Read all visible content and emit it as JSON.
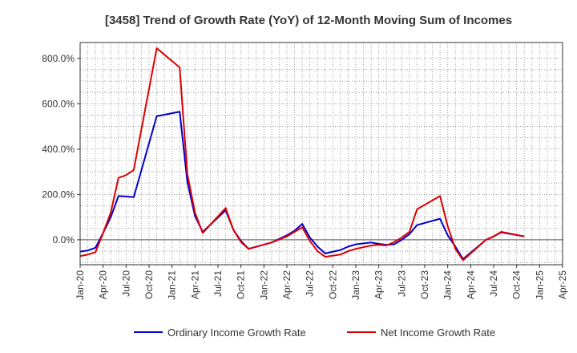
{
  "chart_data": {
    "type": "line",
    "title": "[3458]  Trend of Growth Rate (YoY) of 12-Month Moving Sum of Incomes",
    "xlabel": "",
    "ylabel": "",
    "x_tick_labels": [
      "Jan-20",
      "Apr-20",
      "Jul-20",
      "Oct-20",
      "Jan-21",
      "Apr-21",
      "Jul-21",
      "Oct-21",
      "Jan-22",
      "Apr-22",
      "Jul-22",
      "Oct-22",
      "Jan-23",
      "Apr-23",
      "Jul-23",
      "Oct-23",
      "Jan-24",
      "Apr-24",
      "Jul-24",
      "Oct-24",
      "Jan-25",
      "Apr-25"
    ],
    "y_tick_values": [
      0,
      200,
      400,
      600,
      800
    ],
    "y_tick_labels": [
      "0.0%",
      "200.0%",
      "400.0%",
      "600.0%",
      "800.0%"
    ],
    "ylim": [
      -110,
      870
    ],
    "grid": true,
    "legend_position": "bottom",
    "colors": {
      "ordinary": "#0000cc",
      "net": "#dd0000",
      "grid": "#888888",
      "axis": "#333333"
    },
    "series": [
      {
        "name": "Ordinary Income Growth Rate",
        "color": "#0000cc",
        "points": [
          [
            0,
            -52
          ],
          [
            1,
            -47
          ],
          [
            2,
            -35
          ],
          [
            3,
            30
          ],
          [
            4,
            100
          ],
          [
            5,
            193
          ],
          [
            6,
            191
          ],
          [
            7,
            188
          ],
          [
            10,
            545
          ],
          [
            13,
            565
          ],
          [
            14,
            255
          ],
          [
            15,
            105
          ],
          [
            16,
            35
          ],
          [
            19,
            130
          ],
          [
            20,
            45
          ],
          [
            21,
            -5
          ],
          [
            22,
            -40
          ],
          [
            25,
            -12
          ],
          [
            27,
            20
          ],
          [
            28,
            40
          ],
          [
            29,
            70
          ],
          [
            30,
            10
          ],
          [
            31,
            -30
          ],
          [
            32,
            -60
          ],
          [
            34,
            -45
          ],
          [
            35,
            -30
          ],
          [
            36,
            -20
          ],
          [
            38,
            -12
          ],
          [
            39,
            -18
          ],
          [
            40,
            -22
          ],
          [
            41,
            -20
          ],
          [
            42,
            0
          ],
          [
            43,
            25
          ],
          [
            44,
            65
          ],
          [
            47,
            93
          ],
          [
            48,
            20
          ],
          [
            49,
            -30
          ],
          [
            50,
            -85
          ],
          [
            53,
            0
          ],
          [
            54,
            15
          ],
          [
            55,
            33
          ],
          [
            58,
            15
          ]
        ]
      },
      {
        "name": "Net Income Growth Rate",
        "color": "#dd0000",
        "points": [
          [
            0,
            -72
          ],
          [
            1,
            -65
          ],
          [
            2,
            -55
          ],
          [
            3,
            30
          ],
          [
            4,
            120
          ],
          [
            5,
            273
          ],
          [
            6,
            285
          ],
          [
            7,
            308
          ],
          [
            10,
            845
          ],
          [
            13,
            760
          ],
          [
            14,
            290
          ],
          [
            15,
            120
          ],
          [
            16,
            30
          ],
          [
            19,
            140
          ],
          [
            20,
            45
          ],
          [
            21,
            -10
          ],
          [
            22,
            -40
          ],
          [
            25,
            -12
          ],
          [
            27,
            15
          ],
          [
            28,
            35
          ],
          [
            29,
            55
          ],
          [
            30,
            -5
          ],
          [
            31,
            -50
          ],
          [
            32,
            -75
          ],
          [
            34,
            -65
          ],
          [
            35,
            -50
          ],
          [
            36,
            -40
          ],
          [
            38,
            -25
          ],
          [
            39,
            -22
          ],
          [
            40,
            -25
          ],
          [
            41,
            -10
          ],
          [
            42,
            10
          ],
          [
            43,
            35
          ],
          [
            44,
            135
          ],
          [
            47,
            193
          ],
          [
            48,
            60
          ],
          [
            49,
            -40
          ],
          [
            50,
            -90
          ],
          [
            53,
            0
          ],
          [
            54,
            15
          ],
          [
            55,
            35
          ],
          [
            58,
            15
          ]
        ]
      }
    ]
  }
}
